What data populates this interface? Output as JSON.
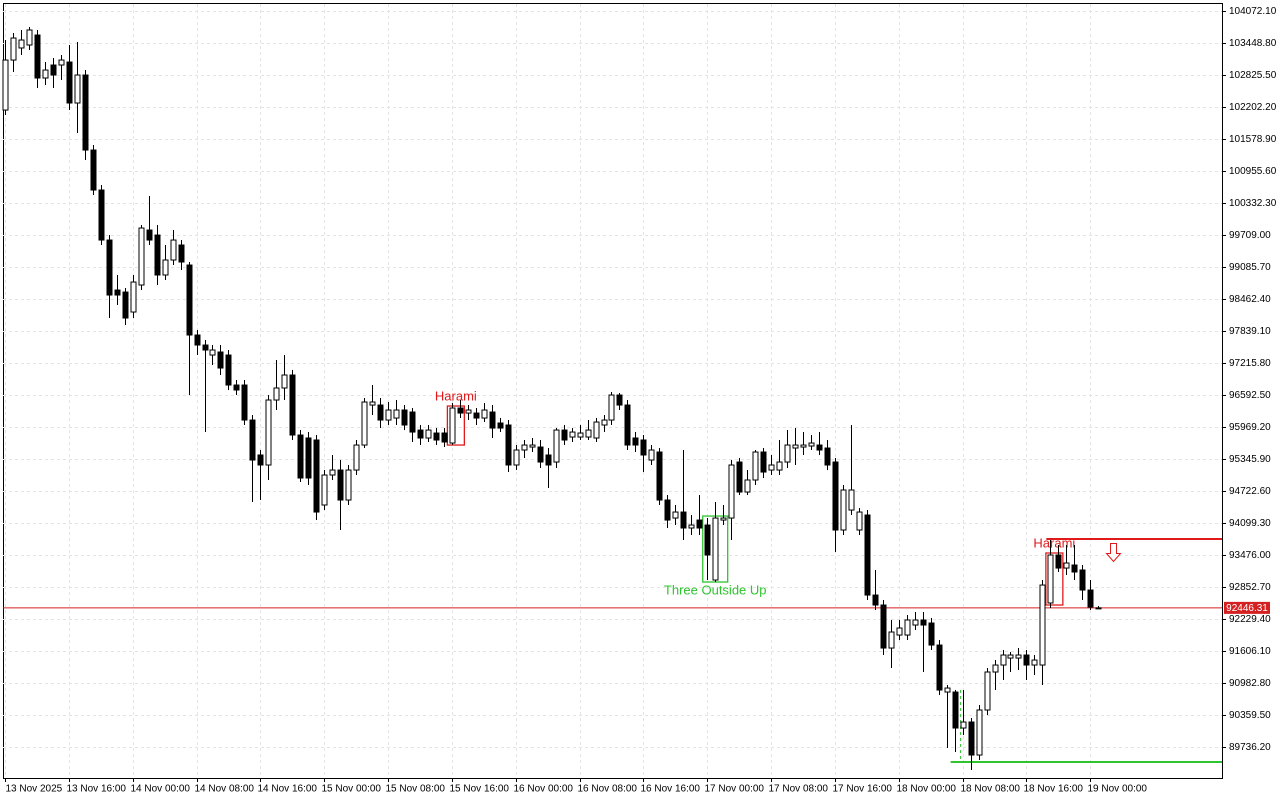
{
  "chart_data": {
    "type": "candlestick",
    "categories": [
      "13 Nov 2025",
      null,
      null,
      null,
      null,
      null,
      null,
      null,
      "13 Nov 16:00",
      null,
      null,
      null,
      null,
      null,
      null,
      null,
      "14 Nov 00:00",
      null,
      null,
      null,
      null,
      null,
      null,
      null,
      "14 Nov 08:00",
      null,
      null,
      null,
      null,
      null,
      null,
      null,
      "14 Nov 16:00",
      null,
      null,
      null,
      null,
      null,
      null,
      null,
      "15 Nov 00:00",
      null,
      null,
      null,
      null,
      null,
      null,
      null,
      "15 Nov 08:00",
      null,
      null,
      null,
      null,
      null,
      null,
      null,
      "15 Nov 16:00",
      null,
      null,
      null,
      null,
      null,
      null,
      null,
      "16 Nov 00:00",
      null,
      null,
      null,
      null,
      null,
      null,
      null,
      "16 Nov 08:00",
      null,
      null,
      null,
      null,
      null,
      null,
      null,
      "16 Nov 16:00",
      null,
      null,
      null,
      null,
      null,
      null,
      null,
      "17 Nov 00:00",
      null,
      null,
      null,
      null,
      null,
      null,
      null,
      "17 Nov 08:00",
      null,
      null,
      null,
      null,
      null,
      null,
      null,
      "17 Nov 16:00",
      null,
      null,
      null,
      null,
      null,
      null,
      null,
      "18 Nov 00:00",
      null,
      null,
      null,
      null,
      null,
      null,
      null,
      "18 Nov 08:00",
      null,
      null,
      null,
      null,
      null,
      null,
      null,
      "18 Nov 16:00",
      null,
      null,
      null,
      null,
      null,
      null,
      null,
      "19 Nov 00:00",
      null
    ],
    "open": [
      102143,
      103117,
      103352,
      103410,
      103604,
      102767,
      103020,
      103020,
      103078,
      102280,
      102825,
      101364,
      100585,
      99611,
      98637,
      98598,
      98209,
      98735,
      99806,
      99708,
      98930,
      99222,
      99514,
      99124,
      97761,
      97566,
      97371,
      97430,
      97371,
      96787,
      96787,
      96105,
      95424,
      95229,
      96495,
      96729,
      96982,
      95813,
      95755,
      95716,
      94450,
      95034,
      95131,
      94547,
      95131,
      95618,
      96397,
      96397,
      96105,
      96144,
      96300,
      96261,
      95910,
      95755,
      95852,
      95852,
      95657,
      96339,
      96241,
      96241,
      96144,
      96261,
      96047,
      96008,
      95229,
      95521,
      95579,
      95579,
      95424,
      95287,
      95910,
      95774,
      95774,
      95774,
      95755,
      96008,
      96105,
      96592,
      96397,
      95755,
      95716,
      95326,
      95482,
      94547,
      94196,
      94313,
      94002,
      94157,
      94060,
      92989,
      94157,
      94196,
      95287,
      94703,
      94937,
      95482,
      95131,
      95131,
      95287,
      95560,
      95579,
      95599,
      95618,
      95560,
      95287,
      93963,
      94352,
      93963,
      94255,
      92696,
      92502,
      91664,
      91917,
      91917,
      92112,
      92210,
      92151,
      91722,
      90807,
      90807,
      90106,
      90223,
      89580,
      90457,
      91197,
      91333,
      91469,
      91469,
      91528,
      91333,
      91333,
      92541,
      93476,
      93222,
      93281,
      93184,
      92794,
      92443
    ],
    "high": [
      103507,
      103643,
      103702,
      103760,
      103702,
      103078,
      103156,
      103215,
      103410,
      103468,
      102922,
      101462,
      100682,
      99708,
      98930,
      98676,
      98930,
      99903,
      100468,
      99903,
      99514,
      99806,
      99611,
      99183,
      97858,
      97663,
      97566,
      97566,
      97469,
      96884,
      96884,
      96203,
      95521,
      96592,
      97274,
      97371,
      97079,
      95910,
      95871,
      95813,
      95131,
      95424,
      95326,
      95229,
      95716,
      96534,
      96787,
      96534,
      96456,
      96495,
      96397,
      96339,
      96008,
      96008,
      95949,
      95949,
      96436,
      96495,
      96397,
      96339,
      96436,
      96397,
      96144,
      96105,
      95618,
      95716,
      95755,
      95716,
      95560,
      95949,
      96008,
      95949,
      96008,
      96105,
      96144,
      96203,
      96651,
      96631,
      96495,
      95871,
      95813,
      95618,
      95560,
      94644,
      94450,
      95521,
      94255,
      94644,
      94196,
      94508,
      94450,
      95326,
      95365,
      95131,
      95521,
      95560,
      95424,
      95716,
      95910,
      95949,
      95871,
      95813,
      95871,
      95716,
      95365,
      94839,
      96008,
      94391,
      94352,
      93184,
      92599,
      92210,
      92210,
      92307,
      92365,
      92365,
      92248,
      91820,
      90944,
      90846,
      90846,
      90301,
      90554,
      91274,
      91430,
      91625,
      91586,
      91664,
      91625,
      91528,
      92989,
      93768,
      93670,
      93670,
      93670,
      93281,
      92989,
      92482
    ],
    "low": [
      102046,
      102884,
      103215,
      103312,
      102572,
      102630,
      102572,
      102728,
      102143,
      101695,
      101170,
      100488,
      99514,
      98092,
      98345,
      97956,
      98092,
      98637,
      99514,
      98735,
      98832,
      99124,
      99027,
      96592,
      97371,
      95871,
      97176,
      96982,
      96690,
      96592,
      96008,
      94508,
      94547,
      94937,
      96300,
      96495,
      95716,
      94898,
      94839,
      94157,
      94352,
      94937,
      93963,
      94450,
      95034,
      95560,
      96203,
      95949,
      96008,
      96008,
      95910,
      95677,
      95618,
      95677,
      95618,
      95579,
      95618,
      96144,
      96105,
      96008,
      96066,
      95755,
      95871,
      95092,
      95131,
      95365,
      95482,
      95170,
      94781,
      95170,
      95618,
      95677,
      95716,
      95716,
      95677,
      95871,
      96008,
      96300,
      95521,
      95482,
      95092,
      95229,
      94450,
      94002,
      94060,
      93768,
      93865,
      93865,
      92989,
      92950,
      94060,
      93768,
      94644,
      94644,
      94839,
      94976,
      95034,
      95034,
      95170,
      95229,
      95424,
      95521,
      95424,
      95131,
      93534,
      93865,
      94255,
      93865,
      92599,
      92404,
      91528,
      91274,
      91820,
      91820,
      92015,
      91197,
      91625,
      90749,
      89716,
      89639,
      89970,
      89288,
      89483,
      90359,
      90846,
      91041,
      91197,
      91236,
      91041,
      91138,
      90944,
      92443,
      93145,
      93086,
      92989,
      92599,
      92404,
      92424
    ],
    "close": [
      103117,
      103546,
      103507,
      103702,
      102767,
      102922,
      102825,
      103117,
      102280,
      102825,
      101364,
      100585,
      99611,
      98540,
      98540,
      98092,
      98793,
      99845,
      99611,
      98930,
      99222,
      99611,
      99183,
      97761,
      97566,
      97469,
      97469,
      97118,
      96787,
      96690,
      96105,
      95326,
      95229,
      96495,
      96729,
      96982,
      95813,
      94976,
      94976,
      94313,
      95034,
      95131,
      94547,
      95131,
      95618,
      96456,
      96456,
      96105,
      96300,
      96300,
      96008,
      95871,
      95755,
      95910,
      95716,
      95677,
      96339,
      96241,
      96300,
      96144,
      96300,
      95949,
      95949,
      95229,
      95521,
      95618,
      95618,
      95287,
      95229,
      95910,
      95716,
      95871,
      95852,
      95910,
      96066,
      96105,
      96592,
      96397,
      95618,
      95618,
      95424,
      95521,
      94547,
      94157,
      94313,
      94002,
      94060,
      94002,
      93476,
      94196,
      94196,
      95229,
      94703,
      94937,
      95482,
      95092,
      95229,
      95287,
      95618,
      95618,
      95618,
      95657,
      95521,
      95229,
      93963,
      94742,
      94742,
      94313,
      92696,
      92502,
      91664,
      91976,
      92054,
      92210,
      92210,
      92112,
      91722,
      90846,
      90885,
      90106,
      90223,
      89580,
      90457,
      91197,
      91333,
      91528,
      91528,
      91528,
      91333,
      91430,
      92891,
      93476,
      93222,
      93320,
      93145,
      92794,
      92463,
      92446.31
    ],
    "up_color": "#ffffff",
    "down_color": "#000000",
    "ylim": [
      89093.6,
      104286.4
    ],
    "yticks": [
      {
        "value": 104072.1,
        "label": "104072.10"
      },
      {
        "value": 103448.8,
        "label": "103448.80"
      },
      {
        "value": 102825.5,
        "label": "102825.50"
      },
      {
        "value": 102202.2,
        "label": "102202.20"
      },
      {
        "value": 101578.9,
        "label": "101578.90"
      },
      {
        "value": 100955.6,
        "label": "100955.60"
      },
      {
        "value": 100332.3,
        "label": "100332.30"
      },
      {
        "value": 99709,
        "label": "99709.00"
      },
      {
        "value": 99085.7,
        "label": "99085.70"
      },
      {
        "value": 98462.4,
        "label": "98462.40"
      },
      {
        "value": 97839.1,
        "label": "97839.10"
      },
      {
        "value": 97215.8,
        "label": "97215.80"
      },
      {
        "value": 96592.5,
        "label": "96592.50"
      },
      {
        "value": 95969.2,
        "label": "95969.20"
      },
      {
        "value": 95345.9,
        "label": "95345.90"
      },
      {
        "value": 94722.6,
        "label": "94722.60"
      },
      {
        "value": 94099.3,
        "label": "94099.30"
      },
      {
        "value": 93476,
        "label": "93476.00"
      },
      {
        "value": 92852.7,
        "label": "92852.70"
      },
      {
        "value": 92229.4,
        "label": "92229.40"
      },
      {
        "value": 91606.1,
        "label": "91606.10"
      },
      {
        "value": 90982.8,
        "label": "90982.80"
      },
      {
        "value": 90359.5,
        "label": "90359.50"
      },
      {
        "value": 89736.2,
        "label": "89736.20"
      }
    ],
    "grid": true,
    "last_price": 92446.31,
    "last_price_color": "#d42020",
    "levels": [
      {
        "value": 93787,
        "color": "#e01a1a"
      },
      {
        "value": 89443,
        "color": "#2ec42e"
      }
    ],
    "annotations": [
      {
        "text": "Harami",
        "color": "#e01a1a"
      },
      {
        "text": "Three Outside Up",
        "color": "#2ec42e"
      },
      {
        "text": "Harami",
        "color": "#e01a1a"
      }
    ]
  }
}
